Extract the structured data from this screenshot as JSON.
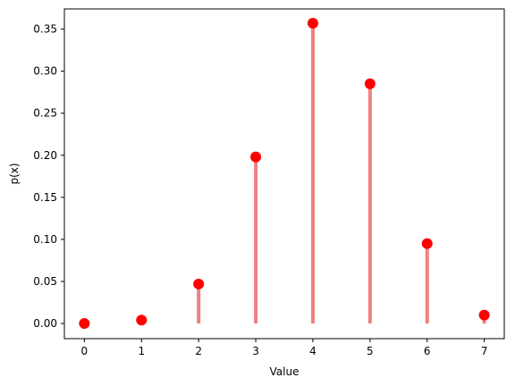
{
  "chart_data": {
    "type": "stem",
    "title": "",
    "xlabel": "Value",
    "ylabel": "p(x)",
    "x": [
      0,
      1,
      2,
      3,
      4,
      5,
      6,
      7
    ],
    "series": [
      {
        "values": [
          0.0001,
          0.004,
          0.047,
          0.198,
          0.357,
          0.285,
          0.095,
          0.01
        ]
      }
    ],
    "xlim": [
      -0.35,
      7.35
    ],
    "ylim": [
      -0.018,
      0.374
    ],
    "xticks": [
      0,
      1,
      2,
      3,
      4,
      5,
      6,
      7
    ],
    "xtick_labels": [
      "0",
      "1",
      "2",
      "3",
      "4",
      "5",
      "6",
      "7"
    ],
    "yticks": [
      0,
      0.05,
      0.1,
      0.15,
      0.2,
      0.25,
      0.3,
      0.35
    ],
    "ytick_labels": [
      "0.00",
      "0.05",
      "0.10",
      "0.15",
      "0.20",
      "0.25",
      "0.30",
      "0.35"
    ],
    "grid": false,
    "legend": "none",
    "colors": {
      "marker": "#ff0000",
      "stem": "#f08080",
      "axis": "#000000"
    }
  }
}
